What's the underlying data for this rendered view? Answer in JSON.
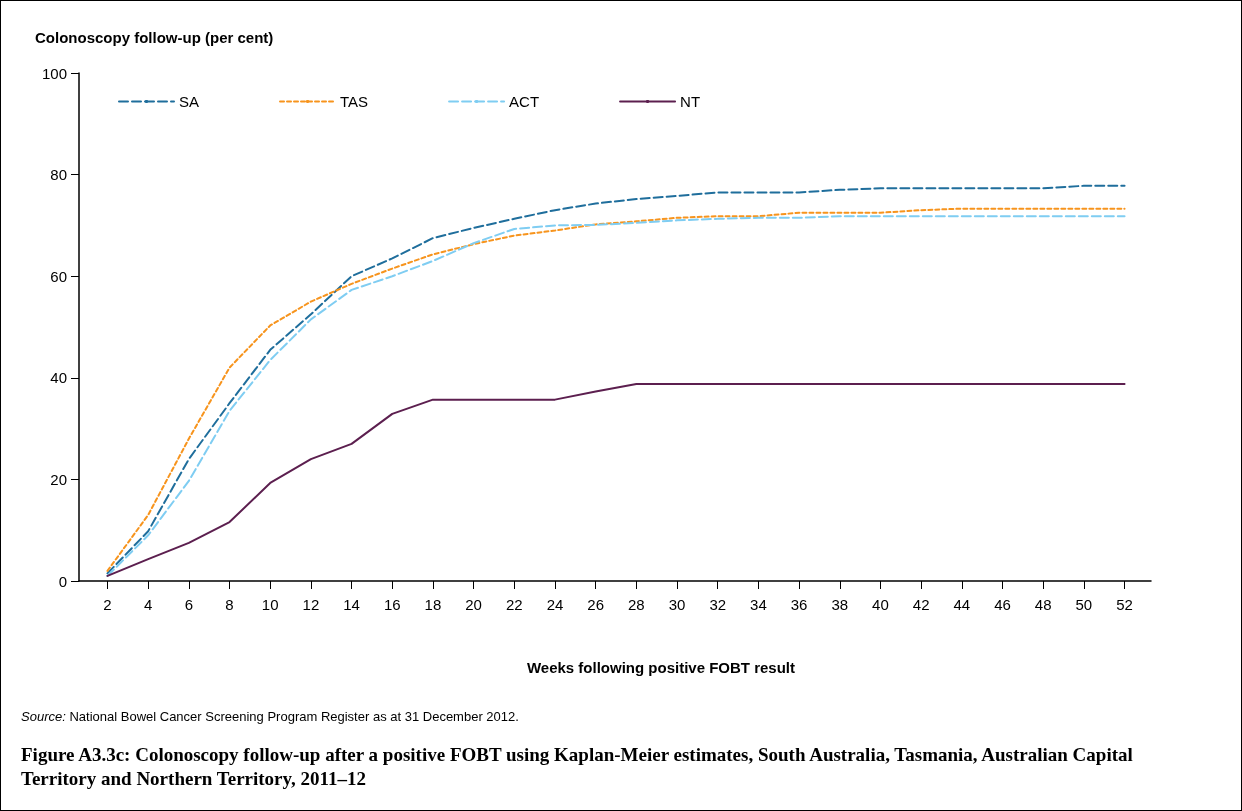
{
  "chart_data": {
    "type": "line",
    "title": "Figure A3.3c: Colonoscopy follow-up after a positive FOBT using Kaplan-Meier estimates, South Australia, Tasmania, Australian Capital Territory and Northern Territory, 2011–12",
    "ylabel": "Colonoscopy follow-up (per cent)",
    "xlabel": "Weeks following positive FOBT result",
    "annotations": [
      "Source: National Bowel Cancer Screening Program Register as at 31 December 2012."
    ],
    "x": [
      2,
      4,
      6,
      8,
      10,
      12,
      14,
      16,
      18,
      20,
      22,
      24,
      26,
      28,
      30,
      32,
      34,
      36,
      38,
      40,
      42,
      44,
      46,
      48,
      50,
      52
    ],
    "series": [
      {
        "name": "SA",
        "color": "#1f6e9c",
        "line_style": "dashed",
        "values": [
          1.5,
          9.8,
          24,
          35,
          45.5,
          52.5,
          60,
          63.5,
          67.5,
          69.5,
          71.3,
          73,
          74.3,
          75.2,
          75.8,
          76.5,
          76.5,
          76.5,
          77,
          77.3,
          77.3,
          77.3,
          77.3,
          77.3,
          77.8,
          77.8
        ]
      },
      {
        "name": "TAS",
        "color": "#f7941d",
        "line_style": "dotted",
        "values": [
          2,
          13,
          28,
          42,
          50.3,
          55,
          58.5,
          61.5,
          64.3,
          66.3,
          68,
          69,
          70.2,
          70.8,
          71.5,
          71.8,
          71.8,
          72.5,
          72.5,
          72.5,
          73,
          73.3,
          73.3,
          73.3,
          73.3,
          73.3
        ]
      },
      {
        "name": "ACT",
        "color": "#7fcdf2",
        "line_style": "dashed",
        "values": [
          1,
          9,
          19.7,
          33.5,
          43.5,
          51.5,
          57.3,
          60,
          63,
          66.5,
          69.3,
          70,
          70.1,
          70.5,
          71,
          71.3,
          71.5,
          71.5,
          71.8,
          71.8,
          71.8,
          71.8,
          71.8,
          71.8,
          71.8,
          71.8
        ]
      },
      {
        "name": "NT",
        "color": "#5c1f4f",
        "line_style": "solid",
        "values": [
          1,
          4.3,
          7.5,
          11.6,
          19.3,
          24,
          27,
          32.9,
          35.7,
          35.7,
          35.7,
          35.7,
          37.3,
          38.8,
          38.8,
          38.8,
          38.8,
          38.8,
          38.8,
          38.8,
          38.8,
          38.8,
          38.8,
          38.8,
          38.8,
          38.8
        ]
      }
    ],
    "xlim": [
      0.6,
      53.3
    ],
    "xticks": [
      2,
      4,
      6,
      8,
      10,
      12,
      14,
      16,
      18,
      20,
      22,
      24,
      26,
      28,
      30,
      32,
      34,
      36,
      38,
      40,
      42,
      44,
      46,
      48,
      50,
      52
    ],
    "ylim": [
      0,
      100
    ],
    "yticks": [
      0,
      20,
      40,
      60,
      80,
      100
    ],
    "grid": false,
    "legend": "top left",
    "marker": "none"
  }
}
